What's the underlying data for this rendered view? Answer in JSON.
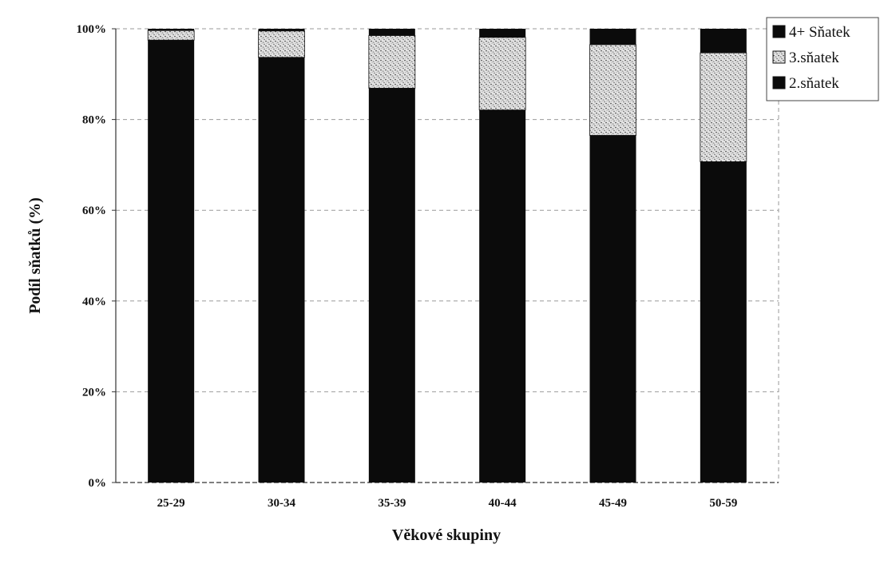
{
  "chart_data": {
    "type": "bar",
    "stacked": true,
    "percent": true,
    "title": "",
    "xlabel": "Věkové skupiny",
    "ylabel": "Podíl sňatků (%)",
    "ylim": [
      0,
      100
    ],
    "yticks": [
      "0%",
      "20%",
      "40%",
      "60%",
      "80%",
      "100%"
    ],
    "grid": true,
    "legend_position": "top-right",
    "categories": [
      "25-29",
      "30-34",
      "35-39",
      "40-44",
      "45-49",
      "50-59"
    ],
    "series": [
      {
        "name": "2.sňatek",
        "values": [
          97.5,
          93.7,
          86.9,
          82.1,
          76.5,
          70.7
        ],
        "color": "#0b0b0b",
        "pattern": "solid"
      },
      {
        "name": "3.sňatek",
        "values": [
          2.1,
          5.8,
          11.6,
          16.0,
          20.0,
          24.0
        ],
        "color": "#c9c9c9",
        "pattern": "speckled"
      },
      {
        "name": "4+ Sňatek",
        "values": [
          0.4,
          0.5,
          1.5,
          1.9,
          3.5,
          5.3
        ],
        "color": "#0b0b0b",
        "pattern": "solid"
      }
    ],
    "legend_order": [
      "4+ Sňatek",
      "3.sňatek",
      "2.sňatek"
    ]
  }
}
